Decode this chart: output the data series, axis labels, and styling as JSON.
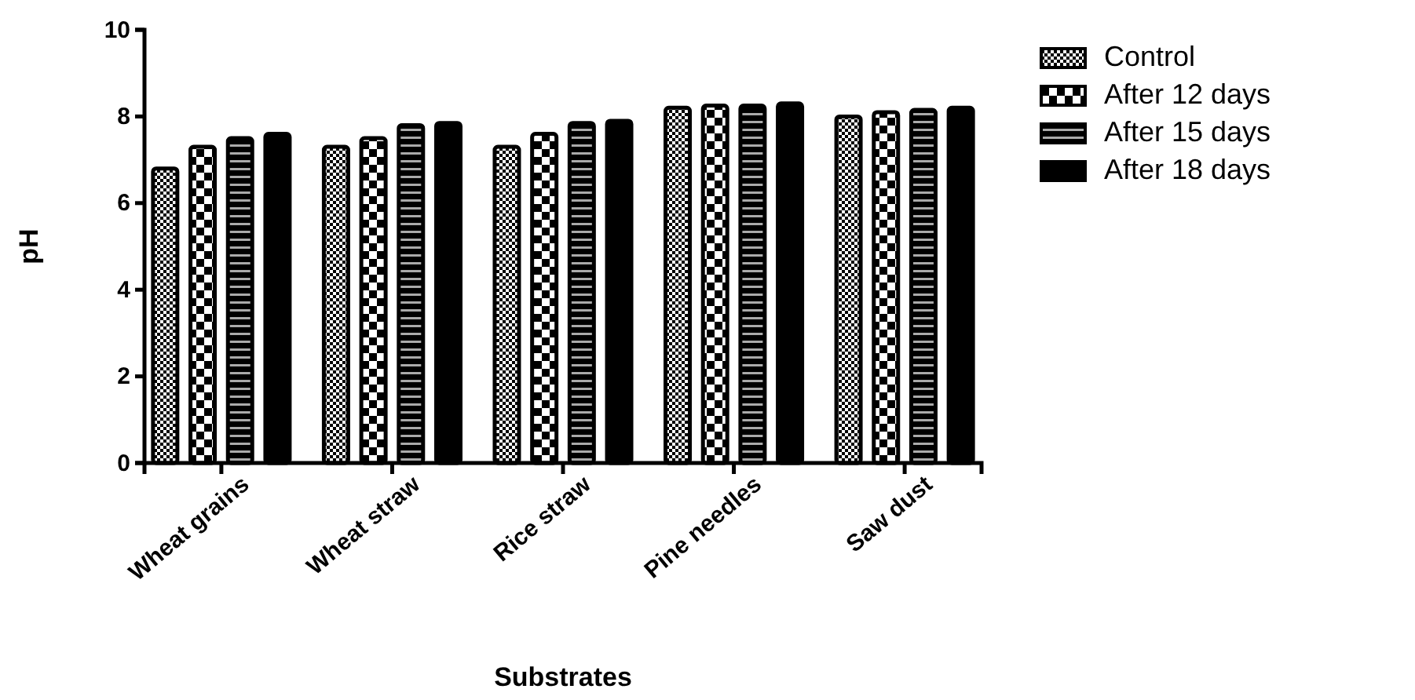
{
  "chart_data": {
    "type": "bar",
    "xlabel": "Substrates",
    "ylabel": "pH",
    "categories": [
      "Wheat grains",
      "Wheat straw",
      "Rice straw",
      "Pine needles",
      "Saw dust"
    ],
    "series": [
      {
        "name": "Control",
        "color": "#000000",
        "values": [
          6.8,
          7.3,
          7.3,
          8.2,
          8.0
        ]
      },
      {
        "name": "After 12 days",
        "color": "#000000",
        "values": [
          7.3,
          7.5,
          7.6,
          8.25,
          8.1
        ]
      },
      {
        "name": "After 15 days",
        "color": "#000000",
        "values": [
          7.5,
          7.8,
          7.85,
          8.25,
          8.15
        ]
      },
      {
        "name": "After 18 days",
        "color": "#000000",
        "values": [
          7.6,
          7.85,
          7.9,
          8.3,
          8.2
        ]
      }
    ],
    "ylim": [
      0,
      10
    ],
    "yticks": [
      0,
      2,
      4,
      6,
      8,
      10
    ],
    "legend": "right",
    "grid": false
  }
}
